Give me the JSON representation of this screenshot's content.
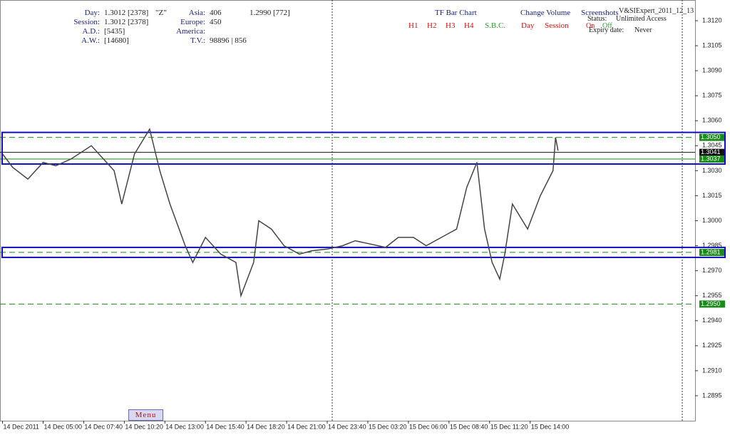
{
  "header": {
    "day_label": "Day:",
    "day_value": "1.3012 [2378]",
    "day_tag": "\"Z\"",
    "session_label": "Session:",
    "session_value": "1.3012 [2378]",
    "ad_label": "A.D.:",
    "ad_value": "[5435]",
    "aw_label": "A.W.:",
    "aw_value": "[14680]",
    "asia_label": "Asia:",
    "asia_value": "406",
    "asia_extra": "1.2990 [772]",
    "europe_label": "Europe:",
    "europe_value": "450",
    "america_label": "America:",
    "tv_label": "T.V.:",
    "tv_value": "98896 | 856",
    "tf_title": "TF Bar Chart",
    "tf_buttons": [
      "H1",
      "H2",
      "H3",
      "H4",
      "S.B.C."
    ],
    "cv_title": "Change Volume",
    "cv_buttons": [
      "Day",
      "Session"
    ],
    "screenshots": "Screenshots",
    "expert": "V&SIExpert_2011_12_13",
    "status_label": "Status:",
    "status_value": "Unlimited Access",
    "on": "On",
    "off": "Off",
    "expiry_label": "Expiry date:",
    "expiry_value": "Never",
    "menu": "Menu"
  },
  "chart_data": {
    "type": "line",
    "x": [
      0,
      4,
      10,
      16,
      21,
      27,
      35,
      44,
      47,
      52,
      58,
      62,
      66,
      72,
      75,
      80,
      86,
      92,
      94,
      99,
      101,
      106,
      111,
      117,
      122,
      128,
      134,
      139,
      145,
      151,
      156,
      162,
      167,
      173,
      179,
      183,
      187,
      190,
      193,
      196,
      198,
      201,
      207,
      212,
      217,
      218,
      219
    ],
    "series": [
      {
        "color": "#444444",
        "values": [
          1.304,
          1.3032,
          1.3025,
          1.3035,
          1.3033,
          1.3037,
          1.3045,
          1.303,
          1.301,
          1.304,
          1.3055,
          1.303,
          1.301,
          1.2985,
          1.2975,
          1.299,
          1.298,
          1.2975,
          1.2955,
          1.2975,
          1.3,
          1.2995,
          1.2985,
          1.298,
          1.2982,
          1.2983,
          1.2985,
          1.2988,
          1.2986,
          1.2984,
          1.299,
          1.299,
          1.2985,
          1.299,
          1.2995,
          1.302,
          1.3035,
          1.2995,
          1.2975,
          1.2965,
          1.298,
          1.301,
          1.2995,
          1.3015,
          1.303,
          1.305,
          1.3042
        ]
      }
    ],
    "xlim": [
      -1,
      273
    ],
    "xticks": [
      {
        "value": 0,
        "label": "14 Dec 2011"
      },
      {
        "value": 16,
        "label": "14 Dec 05:00"
      },
      {
        "value": 32,
        "label": "14 Dec 07:40"
      },
      {
        "value": 48,
        "label": "14 Dec 10:20"
      },
      {
        "value": 64,
        "label": "14 Dec 13:00"
      },
      {
        "value": 80,
        "label": "14 Dec 15:40"
      },
      {
        "value": 96,
        "label": "14 Dec 18:20"
      },
      {
        "value": 112,
        "label": "14 Dec 21:00"
      },
      {
        "value": 128,
        "label": "14 Dec 23:40"
      },
      {
        "value": 144,
        "label": "15 Dec 03:20"
      },
      {
        "value": 160,
        "label": "15 Dec 06:00"
      },
      {
        "value": 176,
        "label": "15 Dec 08:40"
      },
      {
        "value": 192,
        "label": "15 Dec 11:20"
      },
      {
        "value": 208,
        "label": "15 Dec 14:00"
      }
    ],
    "ylim": [
      1.288,
      1.3129
    ],
    "yticks": [
      {
        "value": 1.312,
        "label": "1.3120"
      },
      1.3105,
      {
        "value": 1.309,
        "label": "1.3090"
      },
      1.3075,
      {
        "value": 1.306,
        "label": "1.3060"
      },
      1.3045,
      {
        "value": 1.303,
        "label": "1.3030"
      },
      1.3015,
      {
        "value": 1.3,
        "label": "1.3000"
      },
      1.2985,
      {
        "value": 1.297,
        "label": "1.2970"
      },
      1.2955,
      {
        "value": 1.294,
        "label": "1.2940"
      },
      1.2925,
      {
        "value": 1.291,
        "label": "1.2910"
      },
      1.2895
    ],
    "levels": [
      {
        "value": 1.305,
        "label": "1.3050",
        "color": "#1a8a1a"
      },
      {
        "value": 1.3041,
        "label": "1.3041",
        "color": "#111111"
      },
      {
        "value": 1.3037,
        "label": "1.3037",
        "color": "#1a8a1a"
      },
      {
        "value": 1.2981,
        "label": "1.2981",
        "color": "#1a8a1a"
      },
      {
        "value": 1.295,
        "label": "1.2950",
        "color": "#1a8a1a"
      }
    ]
  }
}
